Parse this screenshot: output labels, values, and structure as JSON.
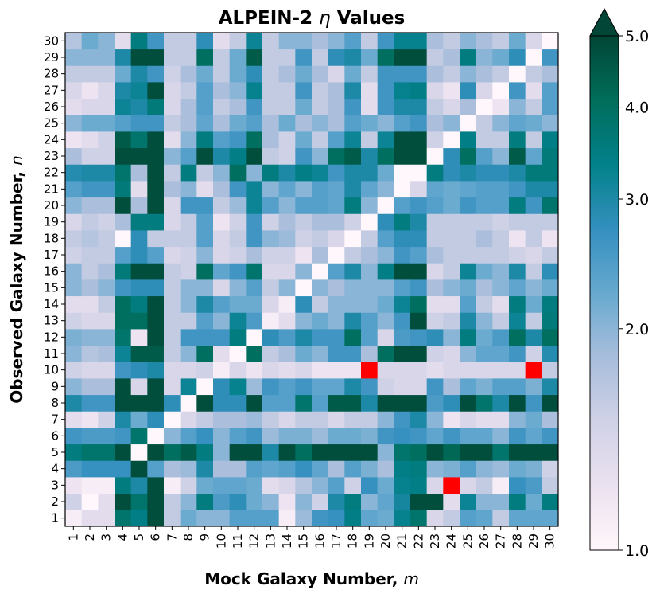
{
  "chart_data": {
    "type": "heatmap",
    "title": "ALPEIN-2",
    "title_symbol": "η",
    "title_suffix": "Values",
    "xlabel": "Mock Galaxy Number,",
    "xlabel_symbol": "m",
    "ylabel": "Observed Galaxy Number,",
    "ylabel_symbol": "n",
    "x_categories": [
      "1",
      "2",
      "3",
      "4",
      "5",
      "6",
      "7",
      "8",
      "9",
      "10",
      "11",
      "12",
      "13",
      "14",
      "15",
      "16",
      "17",
      "18",
      "19",
      "20",
      "21",
      "22",
      "23",
      "24",
      "25",
      "26",
      "27",
      "28",
      "29",
      "30"
    ],
    "y_categories": [
      "1",
      "2",
      "3",
      "4",
      "5",
      "6",
      "7",
      "8",
      "9",
      "10",
      "11",
      "12",
      "13",
      "14",
      "15",
      "16",
      "17",
      "18",
      "19",
      "20",
      "21",
      "22",
      "23",
      "24",
      "25",
      "26",
      "27",
      "28",
      "29",
      "30"
    ],
    "colormap": "PuBuGn",
    "color_scale": "log",
    "color_range": [
      1.0,
      5.0
    ],
    "colorbar_extend": "max",
    "colorbar_ticks": [
      "1.0",
      "2.0",
      "3.0",
      "4.0",
      "5.0"
    ],
    "colorbar_tick_values": [
      1.0,
      2.0,
      3.0,
      4.0,
      5.0
    ],
    "special_cells_color": "#ff0000",
    "special_cells": [
      {
        "x": 19,
        "y": 10
      },
      {
        "x": 29,
        "y": 10
      },
      {
        "x": 24,
        "y": 3
      }
    ],
    "values_by_row_bottom_to_top": [
      [
        1.1,
        1.3,
        1.3,
        3.8,
        3.4,
        4.8,
        1.6,
        2.2,
        2.0,
        2.0,
        2.4,
        2.4,
        2.4,
        1.1,
        1.9,
        2.6,
        2.7,
        3.4,
        2.3,
        2.2,
        3.3,
        3.8,
        1.4,
        1.6,
        2.4,
        2.3,
        1.6,
        2.3,
        2.3,
        2.3
      ],
      [
        1.5,
        1.0,
        1.3,
        4.8,
        3.8,
        4.8,
        1.6,
        2.0,
        3.5,
        2.5,
        2.8,
        2.2,
        2.0,
        1.2,
        2.0,
        1.5,
        3.0,
        3.5,
        2.0,
        2.3,
        3.1,
        4.8,
        4.8,
        1.3,
        3.2,
        2.0,
        2.0,
        3.5,
        2.2,
        3.5
      ],
      [
        1.2,
        1.1,
        1.1,
        3.5,
        3.0,
        4.8,
        1.1,
        1.5,
        2.2,
        2.3,
        2.3,
        2.2,
        1.3,
        1.4,
        1.7,
        2.0,
        2.4,
        1.5,
        2.7,
        2.2,
        3.3,
        3.4,
        1.4,
        1.0,
        1.4,
        1.6,
        1.1,
        2.7,
        2.5,
        1.6
      ],
      [
        2.5,
        2.7,
        2.7,
        2.7,
        4.8,
        2.4,
        1.8,
        1.9,
        3.0,
        1.8,
        1.8,
        2.4,
        2.3,
        2.4,
        2.7,
        2.3,
        1.8,
        2.4,
        2.1,
        1.8,
        3.4,
        3.5,
        2.0,
        2.1,
        2.4,
        2.0,
        1.9,
        2.2,
        2.1,
        1.5
      ],
      [
        3.5,
        3.8,
        3.8,
        4.8,
        1.0,
        4.8,
        4.0,
        4.5,
        3.5,
        2.0,
        4.8,
        4.8,
        3.0,
        4.8,
        4.0,
        4.8,
        4.8,
        4.8,
        4.8,
        2.0,
        3.8,
        4.0,
        4.8,
        4.2,
        4.8,
        4.8,
        3.8,
        4.8,
        4.8,
        4.8
      ],
      [
        2.6,
        2.5,
        2.5,
        2.6,
        3.8,
        1.0,
        2.0,
        2.4,
        2.7,
        2.0,
        2.4,
        2.6,
        1.9,
        2.1,
        2.1,
        1.9,
        2.2,
        2.2,
        2.1,
        2.6,
        2.7,
        2.6,
        2.3,
        2.6,
        2.3,
        2.3,
        2.0,
        2.6,
        2.3,
        2.6
      ],
      [
        1.3,
        1.2,
        1.5,
        3.0,
        2.2,
        2.8,
        1.0,
        1.4,
        1.6,
        1.8,
        1.8,
        1.9,
        1.6,
        1.4,
        1.6,
        1.6,
        1.4,
        1.6,
        1.6,
        2.0,
        2.6,
        3.0,
        2.0,
        1.2,
        1.4,
        1.3,
        1.3,
        2.0,
        2.2,
        1.8
      ],
      [
        3.0,
        2.6,
        2.6,
        4.8,
        4.8,
        4.8,
        2.8,
        1.0,
        4.8,
        2.8,
        2.8,
        4.8,
        2.4,
        2.4,
        3.8,
        2.4,
        4.5,
        4.5,
        3.0,
        4.8,
        4.8,
        4.8,
        2.5,
        2.8,
        4.8,
        3.8,
        3.0,
        4.8,
        2.6,
        4.8
      ],
      [
        2.0,
        1.8,
        1.8,
        4.8,
        1.4,
        4.8,
        1.4,
        3.2,
        1.0,
        2.8,
        3.3,
        1.9,
        2.6,
        2.4,
        2.6,
        2.3,
        2.3,
        3.0,
        2.6,
        1.5,
        1.4,
        1.4,
        2.6,
        1.8,
        2.3,
        2.1,
        2.4,
        2.4,
        2.1,
        3.0
      ],
      [
        1.5,
        1.4,
        1.4,
        2.6,
        2.8,
        3.0,
        1.4,
        1.4,
        1.5,
        1.1,
        1.4,
        1.2,
        1.4,
        1.3,
        1.4,
        1.2,
        1.2,
        1.2,
        1.2,
        1.4,
        1.4,
        1.4,
        1.3,
        1.4,
        1.4,
        1.4,
        1.4,
        1.4,
        1.2,
        1.6
      ],
      [
        2.0,
        1.7,
        1.8,
        3.2,
        4.5,
        4.5,
        1.6,
        2.0,
        4.0,
        1.3,
        1.0,
        4.0,
        1.6,
        1.8,
        2.2,
        2.0,
        2.6,
        2.6,
        1.8,
        4.0,
        4.8,
        4.8,
        1.5,
        1.4,
        2.0,
        2.3,
        2.3,
        2.6,
        1.5,
        2.9
      ],
      [
        2.1,
        2.0,
        2.0,
        3.8,
        1.2,
        4.8,
        1.6,
        2.6,
        2.6,
        2.6,
        3.5,
        1.0,
        2.8,
        2.5,
        3.0,
        2.6,
        2.6,
        4.0,
        2.4,
        1.4,
        2.5,
        2.6,
        2.8,
        2.0,
        3.5,
        2.2,
        2.5,
        4.0,
        3.0,
        4.0
      ],
      [
        1.5,
        1.4,
        1.4,
        4.0,
        4.0,
        4.8,
        1.6,
        1.6,
        2.4,
        2.0,
        3.2,
        2.5,
        1.1,
        1.3,
        2.0,
        2.2,
        2.0,
        3.0,
        2.4,
        2.0,
        2.6,
        4.8,
        1.5,
        1.6,
        3.0,
        2.0,
        1.6,
        3.2,
        1.6,
        3.6
      ],
      [
        1.3,
        1.3,
        1.6,
        4.0,
        3.5,
        4.8,
        1.6,
        2.0,
        3.0,
        2.4,
        2.2,
        2.2,
        1.4,
        1.1,
        2.8,
        1.6,
        2.0,
        2.0,
        2.0,
        2.2,
        3.2,
        4.0,
        1.3,
        1.3,
        2.4,
        1.6,
        1.3,
        3.5,
        2.2,
        3.5
      ],
      [
        2.0,
        1.8,
        2.0,
        2.6,
        2.8,
        2.8,
        1.6,
        2.0,
        2.0,
        1.4,
        2.0,
        2.4,
        1.6,
        2.0,
        1.0,
        2.0,
        1.8,
        2.0,
        2.0,
        2.0,
        2.4,
        2.6,
        1.8,
        2.0,
        2.2,
        1.8,
        2.0,
        2.3,
        2.0,
        2.2
      ],
      [
        2.0,
        1.6,
        1.8,
        3.6,
        4.8,
        4.8,
        1.6,
        1.5,
        4.0,
        2.3,
        2.6,
        3.8,
        1.4,
        1.4,
        2.0,
        1.0,
        2.4,
        3.0,
        2.0,
        3.4,
        4.8,
        4.8,
        1.4,
        1.6,
        3.2,
        2.2,
        2.0,
        3.0,
        1.6,
        2.8
      ],
      [
        1.5,
        1.6,
        1.6,
        2.4,
        2.8,
        2.4,
        1.4,
        1.5,
        2.0,
        1.4,
        1.5,
        1.8,
        1.5,
        1.5,
        1.2,
        1.8,
        1.0,
        1.6,
        1.8,
        2.0,
        2.6,
        2.4,
        1.8,
        1.6,
        1.6,
        1.6,
        1.6,
        1.5,
        1.4,
        1.6
      ],
      [
        1.6,
        1.7,
        1.6,
        1.0,
        2.8,
        1.6,
        1.6,
        1.6,
        2.4,
        1.4,
        1.6,
        2.6,
        2.0,
        1.9,
        1.5,
        1.6,
        1.4,
        1.0,
        1.6,
        2.4,
        2.8,
        2.8,
        1.6,
        1.6,
        1.6,
        1.8,
        1.6,
        1.2,
        1.6,
        1.2
      ],
      [
        1.4,
        1.6,
        1.5,
        1.8,
        3.5,
        3.5,
        1.4,
        1.6,
        2.4,
        1.2,
        1.5,
        2.6,
        1.5,
        1.8,
        1.6,
        1.8,
        1.8,
        1.5,
        1.0,
        2.8,
        3.5,
        3.0,
        1.6,
        1.6,
        1.6,
        1.6,
        1.5,
        1.6,
        1.6,
        1.6
      ],
      [
        2.0,
        1.8,
        1.8,
        4.8,
        1.8,
        4.8,
        1.4,
        2.6,
        2.6,
        1.6,
        1.9,
        3.2,
        2.4,
        2.0,
        2.4,
        2.4,
        2.3,
        3.5,
        2.0,
        1.0,
        2.4,
        2.6,
        2.4,
        2.2,
        2.6,
        2.4,
        2.4,
        3.5,
        2.6,
        3.8
      ],
      [
        2.4,
        2.6,
        2.6,
        3.6,
        1.3,
        4.8,
        1.8,
        2.0,
        1.3,
        1.8,
        2.6,
        3.2,
        2.0,
        2.3,
        2.0,
        2.4,
        2.3,
        3.0,
        2.3,
        2.0,
        1.0,
        1.4,
        2.3,
        2.2,
        2.3,
        2.4,
        2.4,
        2.6,
        3.0,
        3.0
      ],
      [
        2.9,
        3.0,
        3.0,
        3.8,
        1.8,
        4.8,
        1.6,
        3.5,
        1.6,
        2.0,
        4.0,
        2.0,
        3.5,
        3.0,
        3.4,
        3.2,
        2.6,
        3.0,
        3.0,
        2.2,
        1.0,
        1.0,
        3.5,
        2.8,
        3.0,
        2.8,
        2.8,
        3.0,
        3.6,
        3.6
      ],
      [
        1.8,
        1.5,
        1.5,
        4.8,
        4.8,
        4.8,
        2.0,
        2.4,
        4.8,
        3.0,
        3.4,
        4.8,
        1.6,
        1.5,
        2.6,
        2.0,
        4.0,
        4.5,
        3.0,
        4.0,
        4.8,
        4.8,
        1.0,
        2.8,
        4.0,
        2.4,
        2.0,
        4.5,
        2.3,
        3.6
      ],
      [
        1.2,
        1.3,
        1.5,
        4.5,
        3.8,
        4.8,
        1.3,
        2.0,
        3.5,
        2.4,
        2.6,
        4.0,
        1.8,
        1.5,
        2.2,
        1.6,
        2.4,
        3.2,
        1.6,
        3.2,
        4.8,
        4.8,
        1.5,
        1.0,
        3.4,
        1.6,
        1.6,
        3.5,
        1.6,
        3.4
      ],
      [
        2.0,
        2.2,
        2.2,
        2.4,
        2.6,
        2.6,
        1.6,
        1.8,
        2.3,
        1.8,
        2.2,
        2.4,
        1.8,
        2.2,
        1.8,
        2.0,
        1.8,
        2.4,
        2.2,
        2.0,
        2.4,
        2.6,
        1.8,
        2.0,
        1.0,
        1.6,
        2.0,
        2.3,
        2.2,
        2.0
      ],
      [
        1.3,
        1.4,
        1.4,
        3.2,
        3.0,
        3.6,
        1.4,
        1.8,
        2.4,
        1.6,
        1.8,
        2.6,
        1.6,
        1.6,
        2.2,
        1.6,
        1.8,
        2.6,
        1.3,
        2.6,
        3.0,
        3.0,
        1.6,
        1.4,
        1.8,
        1.0,
        1.2,
        2.0,
        1.6,
        2.4
      ],
      [
        1.4,
        1.2,
        1.4,
        3.0,
        3.2,
        4.8,
        1.4,
        1.6,
        2.4,
        1.8,
        2.0,
        3.3,
        1.6,
        1.6,
        2.6,
        1.6,
        1.8,
        3.0,
        1.3,
        2.6,
        3.3,
        3.4,
        1.4,
        1.2,
        2.8,
        1.4,
        1.0,
        2.6,
        1.3,
        2.4
      ],
      [
        1.6,
        1.6,
        1.6,
        2.2,
        3.0,
        2.6,
        1.5,
        1.8,
        2.2,
        1.6,
        2.2,
        2.8,
        1.6,
        1.8,
        2.2,
        1.8,
        1.4,
        2.2,
        1.6,
        2.6,
        2.6,
        2.6,
        1.8,
        1.6,
        2.0,
        1.8,
        1.6,
        1.0,
        1.6,
        1.8
      ],
      [
        2.0,
        2.0,
        2.0,
        3.0,
        4.8,
        4.8,
        1.6,
        1.6,
        4.0,
        1.6,
        2.2,
        4.5,
        1.6,
        1.6,
        2.6,
        1.6,
        2.8,
        3.0,
        2.2,
        4.0,
        4.8,
        4.8,
        1.6,
        1.8,
        3.5,
        2.0,
        2.2,
        2.8,
        1.0,
        2.6
      ],
      [
        1.7,
        2.2,
        2.0,
        1.3,
        3.5,
        2.6,
        1.6,
        1.6,
        2.8,
        1.3,
        1.6,
        3.2,
        1.6,
        2.0,
        2.0,
        1.8,
        2.0,
        2.4,
        1.6,
        2.6,
        3.3,
        3.3,
        1.8,
        1.6,
        2.0,
        1.8,
        1.6,
        2.2,
        1.4,
        1.0
      ]
    ]
  }
}
